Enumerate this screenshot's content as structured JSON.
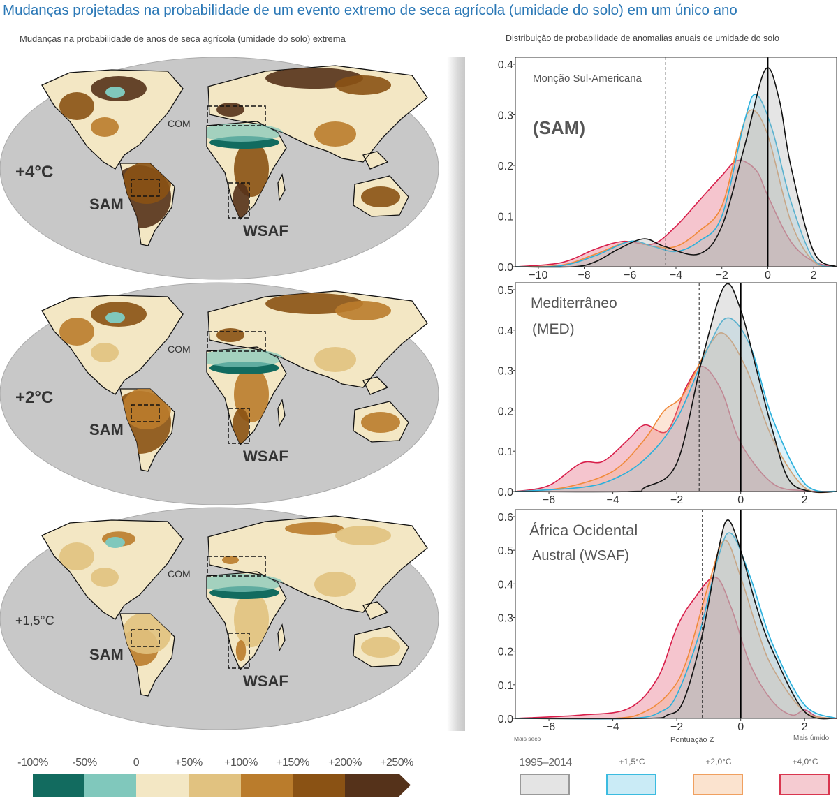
{
  "title": "Mudanças projetadas na probabilidade de um evento extremo de seca agrícola (umidade do solo) em um único ano",
  "left_subtitle": "Mudanças na probabilidade de anos de seca agrícola (umidade do solo) extrema",
  "right_subtitle": "Distribuição de probabilidade de anomalias anuais de umidade do solo",
  "maps": [
    {
      "warming": "+4°C",
      "labels": {
        "com": "COM",
        "sam": "SAM",
        "wsaf": "WSAF"
      },
      "intensity": "high"
    },
    {
      "warming": "+2°C",
      "labels": {
        "com": "COM",
        "sam": "SAM",
        "wsaf": "WSAF"
      },
      "intensity": "medium"
    },
    {
      "warming": "+1,5°C",
      "labels": {
        "com": "COM",
        "sam": "SAM",
        "wsaf": "WSAF"
      },
      "intensity": "low"
    }
  ],
  "colorbar": {
    "labels": [
      "-100%",
      "-50%",
      "0",
      "+50%",
      "+100%",
      "+150%",
      "+200%",
      "+250%"
    ],
    "colors": [
      "#126b5f",
      "#80c8bc",
      "#f3e7c4",
      "#e1c280",
      "#ba7c2c",
      "#8a5214",
      "#55321a"
    ]
  },
  "legend": [
    {
      "label": "1995–2014",
      "fill": "#e4e4e4",
      "line": "#999999"
    },
    {
      "label": "+1,5°C",
      "fill": "#caebf6",
      "line": "#3bbbe0"
    },
    {
      "label": "+2,0°C",
      "fill": "#fbe3cf",
      "line": "#f0a060"
    },
    {
      "label": "+4,0°C",
      "fill": "#f5cbd1",
      "line": "#d9364f"
    }
  ],
  "chart_data": [
    {
      "type": "area",
      "region": "Monção Sul-Americana",
      "code": "(SAM)",
      "xlim": [
        -11,
        3
      ],
      "ylim": [
        0,
        0.4
      ],
      "xticks": [
        -10,
        -8,
        -6,
        -4,
        -2,
        0,
        2
      ],
      "yticks": [
        "0.0",
        "0.1",
        "0.2",
        "0.3",
        "0.4"
      ],
      "threshold": -4.45,
      "series": [
        {
          "name": "+4,0°C",
          "color": "#d81e4a",
          "fill": "rgba(226,90,115,0.35)",
          "points": [
            [
              -11,
              0
            ],
            [
              -9,
              0.008
            ],
            [
              -7.5,
              0.035
            ],
            [
              -6.3,
              0.05
            ],
            [
              -5,
              0.045
            ],
            [
              -4,
              0.08
            ],
            [
              -3,
              0.13
            ],
            [
              -2,
              0.18
            ],
            [
              -1.3,
              0.21
            ],
            [
              -0.5,
              0.19
            ],
            [
              0,
              0.14
            ],
            [
              1,
              0.05
            ],
            [
              2,
              0.01
            ],
            [
              3,
              0
            ]
          ]
        },
        {
          "name": "+2,0°C",
          "color": "#f08a3a",
          "fill": "rgba(245,170,120,0.3)",
          "points": [
            [
              -11,
              0
            ],
            [
              -9,
              0.003
            ],
            [
              -7.5,
              0.025
            ],
            [
              -6,
              0.05
            ],
            [
              -5,
              0.04
            ],
            [
              -4,
              0.04
            ],
            [
              -3,
              0.07
            ],
            [
              -2,
              0.12
            ],
            [
              -1.2,
              0.26
            ],
            [
              -0.7,
              0.31
            ],
            [
              0,
              0.26
            ],
            [
              1,
              0.09
            ],
            [
              2,
              0.01
            ],
            [
              3,
              0
            ]
          ]
        },
        {
          "name": "+1,5°C",
          "color": "#2ab0dc",
          "fill": "rgba(140,210,235,0.3)",
          "points": [
            [
              -11,
              0
            ],
            [
              -9,
              0.002
            ],
            [
              -7.5,
              0.022
            ],
            [
              -6,
              0.05
            ],
            [
              -5,
              0.04
            ],
            [
              -4,
              0.03
            ],
            [
              -3,
              0.05
            ],
            [
              -2,
              0.1
            ],
            [
              -1,
              0.29
            ],
            [
              -0.5,
              0.34
            ],
            [
              0.2,
              0.27
            ],
            [
              1,
              0.13
            ],
            [
              2,
              0.015
            ],
            [
              3,
              0
            ]
          ]
        },
        {
          "name": "1995–2014",
          "color": "#111111",
          "fill": "rgba(180,180,180,0.35)",
          "points": [
            [
              -11,
              0
            ],
            [
              -8.5,
              0
            ],
            [
              -7.5,
              0.01
            ],
            [
              -6.5,
              0.035
            ],
            [
              -5.4,
              0.055
            ],
            [
              -4.5,
              0.04
            ],
            [
              -3,
              0.025
            ],
            [
              -2,
              0.08
            ],
            [
              -1,
              0.24
            ],
            [
              -0.1,
              0.39
            ],
            [
              0.5,
              0.33
            ],
            [
              1,
              0.2
            ],
            [
              2,
              0.03
            ],
            [
              3,
              0
            ]
          ]
        }
      ]
    },
    {
      "type": "area",
      "region": "Mediterrâneo",
      "code": "(MED)",
      "xlim": [
        -7.05,
        3
      ],
      "ylim": [
        0,
        0.5
      ],
      "xticks": [
        -6,
        -4,
        -2,
        0,
        2
      ],
      "yticks": [
        "0.0",
        "0.1",
        "0.2",
        "0.3",
        "0.4",
        "0.5"
      ],
      "threshold": -1.3,
      "series": [
        {
          "name": "+4,0°C",
          "color": "#d81e4a",
          "fill": "rgba(226,90,115,0.35)",
          "points": [
            [
              -7.05,
              0
            ],
            [
              -6,
              0.015
            ],
            [
              -5,
              0.07
            ],
            [
              -4.3,
              0.075
            ],
            [
              -3.5,
              0.13
            ],
            [
              -3,
              0.165
            ],
            [
              -2.3,
              0.15
            ],
            [
              -1.7,
              0.26
            ],
            [
              -1.2,
              0.31
            ],
            [
              -0.6,
              0.25
            ],
            [
              0,
              0.12
            ],
            [
              1,
              0.02
            ],
            [
              2,
              0.002
            ],
            [
              3,
              0
            ]
          ]
        },
        {
          "name": "+2,0°C",
          "color": "#f08a3a",
          "fill": "rgba(245,170,120,0.3)",
          "points": [
            [
              -7.05,
              0
            ],
            [
              -5.5,
              0.01
            ],
            [
              -4,
              0.05
            ],
            [
              -3,
              0.13
            ],
            [
              -2.4,
              0.2
            ],
            [
              -1.8,
              0.24
            ],
            [
              -1,
              0.36
            ],
            [
              -0.5,
              0.39
            ],
            [
              0.2,
              0.3
            ],
            [
              1,
              0.13
            ],
            [
              2,
              0.01
            ],
            [
              3,
              0
            ]
          ]
        },
        {
          "name": "+1,5°C",
          "color": "#2ab0dc",
          "fill": "rgba(140,210,235,0.3)",
          "points": [
            [
              -7.05,
              0
            ],
            [
              -5,
              0.01
            ],
            [
              -4,
              0.03
            ],
            [
              -3,
              0.08
            ],
            [
              -2,
              0.18
            ],
            [
              -1,
              0.36
            ],
            [
              -0.4,
              0.43
            ],
            [
              0.3,
              0.36
            ],
            [
              1,
              0.18
            ],
            [
              2,
              0.02
            ],
            [
              3,
              0
            ]
          ]
        },
        {
          "name": "1995–2014",
          "color": "#111111",
          "fill": "rgba(180,180,180,0.35)",
          "points": [
            [
              -7.05,
              0
            ],
            [
              -3.5,
              0
            ],
            [
              -3,
              0.01
            ],
            [
              -2,
              0.07
            ],
            [
              -1.2,
              0.33
            ],
            [
              -0.5,
              0.51
            ],
            [
              0,
              0.45
            ],
            [
              0.5,
              0.3
            ],
            [
              1,
              0.15
            ],
            [
              1.5,
              0.03
            ],
            [
              2.2,
              0
            ],
            [
              3,
              0
            ]
          ]
        }
      ]
    },
    {
      "type": "area",
      "region": "África Ocidental",
      "region2": "Austral (WSAF)",
      "xlim": [
        -7.05,
        3
      ],
      "ylim": [
        0,
        0.6
      ],
      "xticks": [
        -6,
        -4,
        -2,
        0,
        2
      ],
      "yticks": [
        "0.0",
        "0.1",
        "0.2",
        "0.3",
        "0.4",
        "0.5",
        "0.6"
      ],
      "threshold": -1.2,
      "xlabel": "Pontuação Z",
      "xlabel_left": "Mais seco",
      "xlabel_right": "Mais úmido",
      "series": [
        {
          "name": "+4,0°C",
          "color": "#d81e4a",
          "fill": "rgba(226,90,115,0.35)",
          "points": [
            [
              -7.05,
              0
            ],
            [
              -5,
              0.01
            ],
            [
              -3.5,
              0.03
            ],
            [
              -2.6,
              0.12
            ],
            [
              -2,
              0.27
            ],
            [
              -1.5,
              0.35
            ],
            [
              -0.8,
              0.42
            ],
            [
              -0.3,
              0.33
            ],
            [
              0.3,
              0.16
            ],
            [
              1,
              0.05
            ],
            [
              1.6,
              0.01
            ],
            [
              2,
              0.025
            ],
            [
              2.4,
              0.005
            ],
            [
              3,
              0
            ]
          ]
        },
        {
          "name": "+2,0°C",
          "color": "#f08a3a",
          "fill": "rgba(245,170,120,0.3)",
          "points": [
            [
              -7.05,
              0
            ],
            [
              -4,
              0
            ],
            [
              -3,
              0.02
            ],
            [
              -2.2,
              0.08
            ],
            [
              -1.7,
              0.17
            ],
            [
              -1,
              0.4
            ],
            [
              -0.5,
              0.53
            ],
            [
              0,
              0.42
            ],
            [
              0.5,
              0.27
            ],
            [
              1,
              0.15
            ],
            [
              2,
              0.02
            ],
            [
              3,
              0
            ]
          ]
        },
        {
          "name": "+1,5°C",
          "color": "#2ab0dc",
          "fill": "rgba(140,210,235,0.3)",
          "points": [
            [
              -7.05,
              0
            ],
            [
              -3.5,
              0
            ],
            [
              -2.5,
              0.02
            ],
            [
              -2,
              0.07
            ],
            [
              -1.3,
              0.25
            ],
            [
              -0.7,
              0.48
            ],
            [
              -0.3,
              0.55
            ],
            [
              0.3,
              0.42
            ],
            [
              1,
              0.22
            ],
            [
              2,
              0.04
            ],
            [
              3,
              0
            ]
          ]
        },
        {
          "name": "1995–2014",
          "color": "#111111",
          "fill": "rgba(180,180,180,0.35)",
          "points": [
            [
              -7.05,
              0
            ],
            [
              -3,
              0
            ],
            [
              -2.3,
              0.01
            ],
            [
              -1.8,
              0.05
            ],
            [
              -1.2,
              0.25
            ],
            [
              -0.7,
              0.5
            ],
            [
              -0.4,
              0.59
            ],
            [
              0,
              0.5
            ],
            [
              0.5,
              0.33
            ],
            [
              1,
              0.2
            ],
            [
              2,
              0.02
            ],
            [
              3,
              0
            ]
          ]
        }
      ]
    }
  ]
}
